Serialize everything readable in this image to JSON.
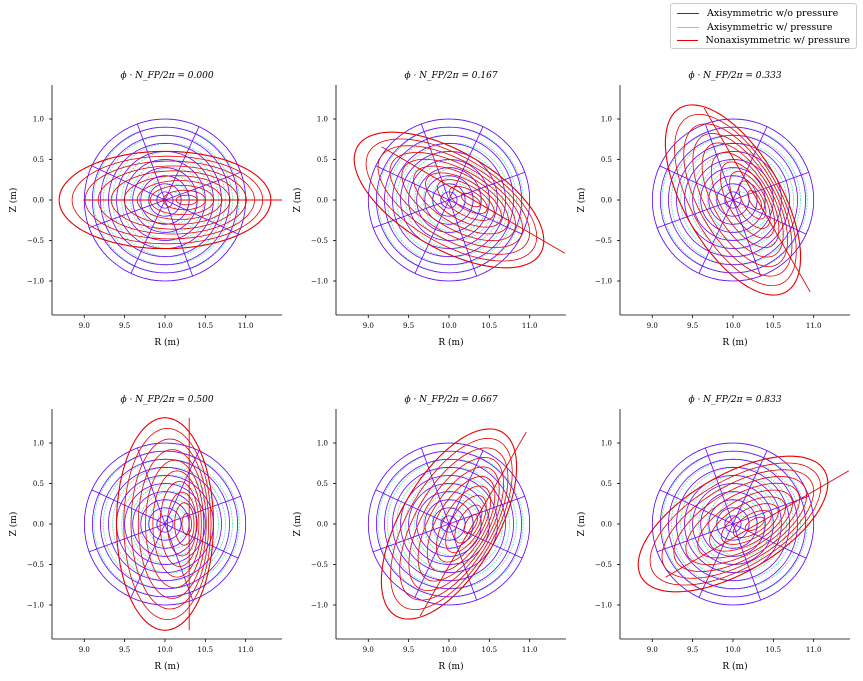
{
  "legend": {
    "entries": [
      {
        "label": "Axisymmetric w/o pressure",
        "color": "#6a00ff"
      },
      {
        "label": "Axisymmetric w/ pressure",
        "color": "#5fe3b8"
      },
      {
        "label": "Nonaxisymmetric w/ pressure",
        "color": "#e60000"
      }
    ]
  },
  "chart_data": {
    "type": "line",
    "xlabel": "R (m)",
    "ylabel": "Z (m)",
    "xlim": [
      8.6,
      11.45
    ],
    "ylim": [
      -1.42,
      1.42
    ],
    "xticks": [
      "9.0",
      "9.5",
      "10.0",
      "10.5",
      "11.0"
    ],
    "yticks": [
      "−1.0",
      "−0.5",
      "0.0",
      "0.5",
      "1.0"
    ],
    "grid": false,
    "legend_position": "top-right",
    "series": [
      {
        "name": "Axisymmetric w/o pressure",
        "color": "#6a00ff"
      },
      {
        "name": "Axisymmetric w/ pressure",
        "color": "#5fe3b8"
      },
      {
        "name": "Nonaxisymmetric w/ pressure",
        "color": "#e60000"
      }
    ],
    "panels": [
      {
        "title": "ϕ · N_FP/2π = 0.000",
        "phase": 0.0
      },
      {
        "title": "ϕ · N_FP/2π = 0.167",
        "phase": 0.167
      },
      {
        "title": "ϕ · N_FP/2π = 0.333",
        "phase": 0.333
      },
      {
        "title": "ϕ · N_FP/2π = 0.500",
        "phase": 0.5
      },
      {
        "title": "ϕ · N_FP/2π = 0.667",
        "phase": 0.667
      },
      {
        "title": "ϕ · N_FP/2π = 0.833",
        "phase": 0.833
      }
    ],
    "surfaces": {
      "axisymmetric_minor_radius": 1.0,
      "axisymmetric_R0": 10.0,
      "axis_shift_w_pressure": 0.1,
      "nonaxisymmetric_axis_R": 10.3,
      "nonaxisymmetric_elongation": 1.6,
      "flux_surface_fractions": [
        0.1,
        0.2,
        0.3,
        0.4,
        0.5,
        0.6,
        0.7,
        0.8,
        0.9,
        1.0
      ]
    }
  }
}
